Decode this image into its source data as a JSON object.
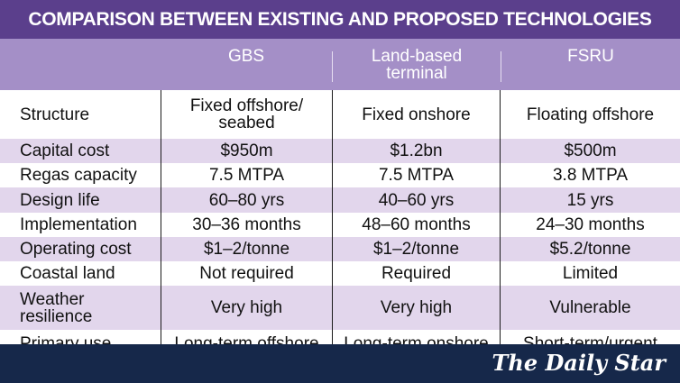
{
  "title": "COMPARISON BETWEEN EXISTING AND PROPOSED TECHNOLOGIES",
  "columns": [
    "GBS",
    "Land-based\nterminal",
    "FSRU"
  ],
  "rows": [
    {
      "label": "Structure",
      "values": [
        "Fixed offshore/\nseabed",
        "Fixed onshore",
        "Floating offshore"
      ]
    },
    {
      "label": "Capital cost",
      "values": [
        "$950m",
        "$1.2bn",
        "$500m"
      ]
    },
    {
      "label": "Regas capacity",
      "values": [
        "7.5 MTPA",
        "7.5 MTPA",
        "3.8 MTPA"
      ]
    },
    {
      "label": "Design life",
      "values": [
        "60–80 yrs",
        "40–60 yrs",
        "15 yrs"
      ]
    },
    {
      "label": "Implementation",
      "values": [
        "30–36 months",
        "48–60 months",
        "24–30 months"
      ]
    },
    {
      "label": "Operating cost",
      "values": [
        "$1–2/tonne",
        "$1–2/tonne",
        "$5.2/tonne"
      ]
    },
    {
      "label": "Coastal land",
      "values": [
        "Not required",
        "Required",
        "Limited"
      ]
    },
    {
      "label": "Weather\nresilience",
      "values": [
        "Very high",
        "Very high",
        "Vulnerable"
      ]
    },
    {
      "label": "Primary use",
      "values": [
        "Long-term offshore",
        "Long-term onshore",
        "Short-term/urgent"
      ]
    }
  ],
  "brand": "The Daily Star"
}
